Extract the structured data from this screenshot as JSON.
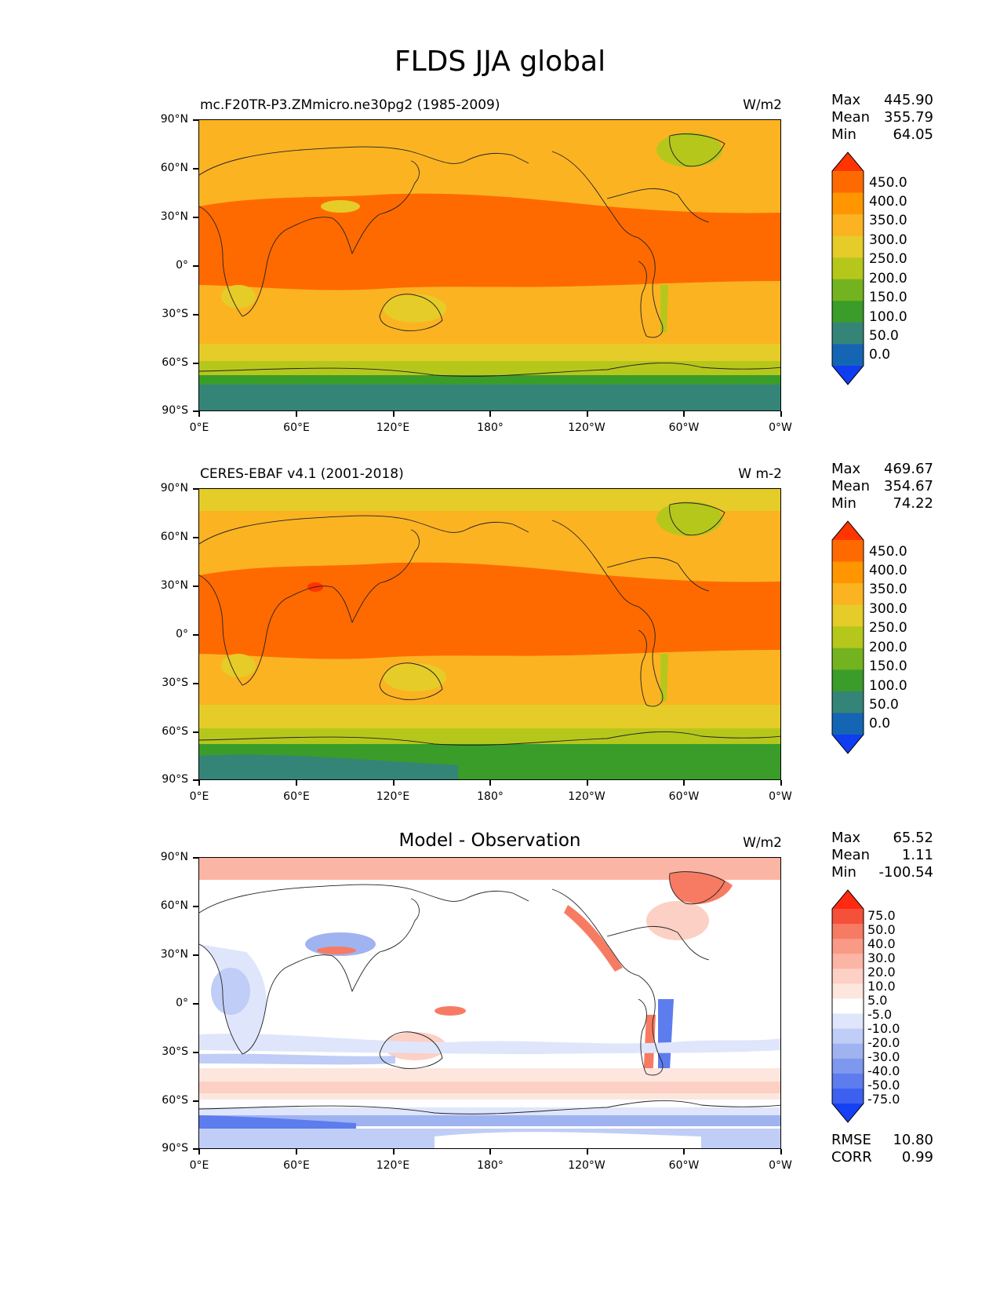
{
  "figure": {
    "title": "FLDS JJA global",
    "lat_ticks": [
      "90°N",
      "60°N",
      "30°N",
      "0°",
      "30°S",
      "60°S",
      "90°S"
    ],
    "lon_ticks": [
      "0°E",
      "60°E",
      "120°E",
      "180°",
      "120°W",
      "60°W",
      "0°W"
    ]
  },
  "panels": [
    {
      "id": "model",
      "left_title": "mc.F20TR-P3.ZMmicro.ne30pg2 (1985-2009)",
      "center_title": "",
      "units": "W/m2",
      "stats": [
        {
          "label": "Max",
          "value": "445.90"
        },
        {
          "label": "Mean",
          "value": "355.79"
        },
        {
          "label": "Min",
          "value": "64.05"
        }
      ],
      "colorbar_labels": [
        "450.0",
        "400.0",
        "350.0",
        "300.0",
        "250.0",
        "200.0",
        "150.0",
        "100.0",
        "50.0",
        "0.0"
      ],
      "colorbar_colors": [
        "#ff3500",
        "#ff6a00",
        "#ff9600",
        "#fbb322",
        "#e6cc28",
        "#b6c71c",
        "#73b320",
        "#3a9c29",
        "#358478",
        "#1565b5",
        "#0f3df0"
      ]
    },
    {
      "id": "obs",
      "left_title": "CERES-EBAF v4.1 (2001-2018)",
      "center_title": "",
      "units": "W m-2",
      "stats": [
        {
          "label": "Max",
          "value": "469.67"
        },
        {
          "label": "Mean",
          "value": "354.67"
        },
        {
          "label": "Min",
          "value": "74.22"
        }
      ],
      "colorbar_labels": [
        "450.0",
        "400.0",
        "350.0",
        "300.0",
        "250.0",
        "200.0",
        "150.0",
        "100.0",
        "50.0",
        "0.0"
      ],
      "colorbar_colors": [
        "#ff3500",
        "#ff6a00",
        "#ff9600",
        "#fbb322",
        "#e6cc28",
        "#b6c71c",
        "#73b320",
        "#3a9c29",
        "#358478",
        "#1565b5",
        "#0f3df0"
      ]
    },
    {
      "id": "diff",
      "left_title": "",
      "center_title": "Model - Observation",
      "units": "W/m2",
      "stats": [
        {
          "label": "Max",
          "value": "65.52"
        },
        {
          "label": "Mean",
          "value": "1.11"
        },
        {
          "label": "Min",
          "value": "-100.54"
        }
      ],
      "colorbar_labels": [
        "75.0",
        "50.0",
        "40.0",
        "30.0",
        "20.0",
        "10.0",
        "5.0",
        "-5.0",
        "-10.0",
        "-20.0",
        "-30.0",
        "-40.0",
        "-50.0",
        "-75.0"
      ],
      "colorbar_colors": [
        "#ff2a10",
        "#f5503a",
        "#f77b62",
        "#f99a86",
        "#fbb5a4",
        "#fcd0c4",
        "#fde6de",
        "#ffffff",
        "#dfe6fb",
        "#c0cdf6",
        "#a0b3f1",
        "#7e98ee",
        "#5d7cee",
        "#3d60f0",
        "#1640f5"
      ],
      "extra_stats": [
        {
          "label": "RMSE",
          "value": "10.80"
        },
        {
          "label": "CORR",
          "value": "0.99"
        }
      ]
    }
  ]
}
